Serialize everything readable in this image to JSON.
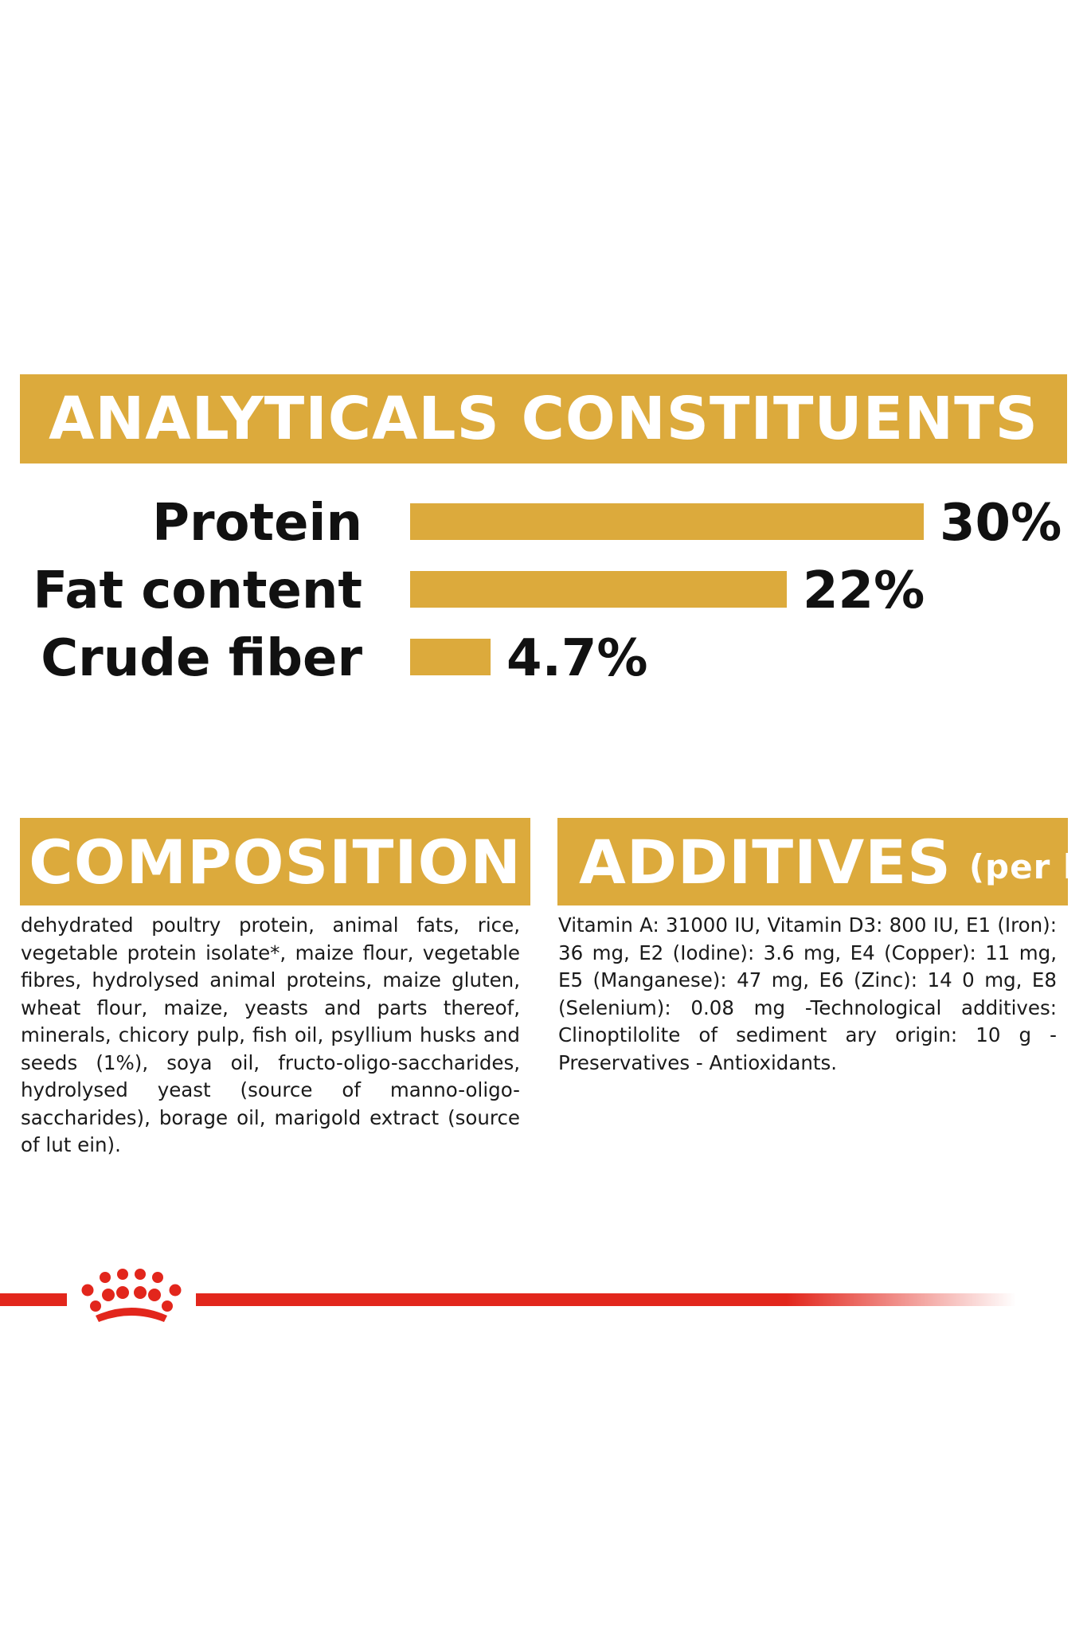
{
  "analytics": {
    "title": "ANALYTICALS CONSTITUENTS"
  },
  "chart_data": {
    "type": "bar",
    "orientation": "horizontal",
    "title": "ANALYTICALS CONSTITUENTS",
    "categories": [
      "Protein",
      "Fat content",
      "Crude fiber"
    ],
    "values": [
      30,
      22,
      4.7
    ],
    "value_labels": [
      "30%",
      "22%",
      "4.7%"
    ],
    "xlabel": "",
    "ylabel": "",
    "xlim": [
      0,
      30
    ],
    "grid": false,
    "bar_color": "#dcaa3c"
  },
  "composition": {
    "title": "COMPOSITION",
    "text": "dehydrated poultry protein, animal fats, rice, vegetable protein isolate*, maize flour, vegetable fibres, hydrolysed animal proteins, maize gluten, wheat flour, maize, yeasts and parts thereof, minerals, chicory pulp, fish oil, psyllium husks and seeds (1%), soya oil, fructo-oligo-saccharides, hydrolysed yeast (source of manno-oligo-saccharides), borage oil, marigold extract (source of lut ein)."
  },
  "additives": {
    "title": "ADDITIVES",
    "unit": "(per kg)",
    "text": "Vitamin A: 31000 IU, Vitamin D3: 800 IU, E1 (Iron): 36 mg, E2 (Iodine): 3.6 mg, E4 (Copper): 11 mg, E5 (Manganese): 47 mg, E6 (Zinc): 14 0 mg, E8 (Selenium): 0.08 mg -Technological additives: Clinoptilolite of sediment ary origin: 10 g - Preservatives - Antioxidants."
  },
  "colors": {
    "gold": "#dcaa3c",
    "brand_red": "#e2261c"
  },
  "logo": {
    "icon": "crown-icon"
  }
}
